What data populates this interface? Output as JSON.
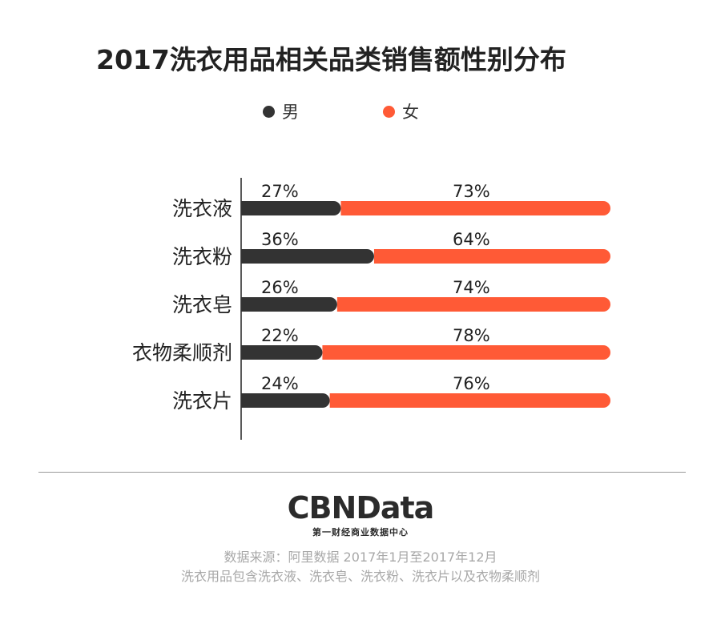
{
  "colors": {
    "male": "#333333",
    "female": "#ff5a36",
    "title": "#222222",
    "note": "#a8a8a8"
  },
  "legend": {
    "male": "男",
    "female": "女"
  },
  "chart_data": {
    "type": "bar",
    "orientation": "horizontal",
    "stacked": true,
    "title": "2017洗衣用品相关品类销售额性别分布",
    "xlabel": "",
    "ylabel": "",
    "xlim": [
      0,
      100
    ],
    "grid": false,
    "legend_position": "top",
    "categories": [
      "洗衣液",
      "洗衣粉",
      "洗衣皂",
      "衣物柔顺剂",
      "洗衣片"
    ],
    "series": [
      {
        "name": "男",
        "values": [
          27,
          36,
          26,
          22,
          24
        ],
        "labels": [
          "27%",
          "36%",
          "26%",
          "22%",
          "24%"
        ]
      },
      {
        "name": "女",
        "values": [
          73,
          64,
          74,
          78,
          76
        ],
        "labels": [
          "73%",
          "64%",
          "74%",
          "78%",
          "76%"
        ]
      }
    ]
  },
  "brand": {
    "logo": "CBNData",
    "subtitle": "第一财经商业数据中心"
  },
  "source": {
    "line1": "数据来源：阿里数据   2017年1月至2017年12月",
    "line2": "洗衣用品包含洗衣液、洗衣皂、洗衣粉、洗衣片以及衣物柔顺剂"
  }
}
